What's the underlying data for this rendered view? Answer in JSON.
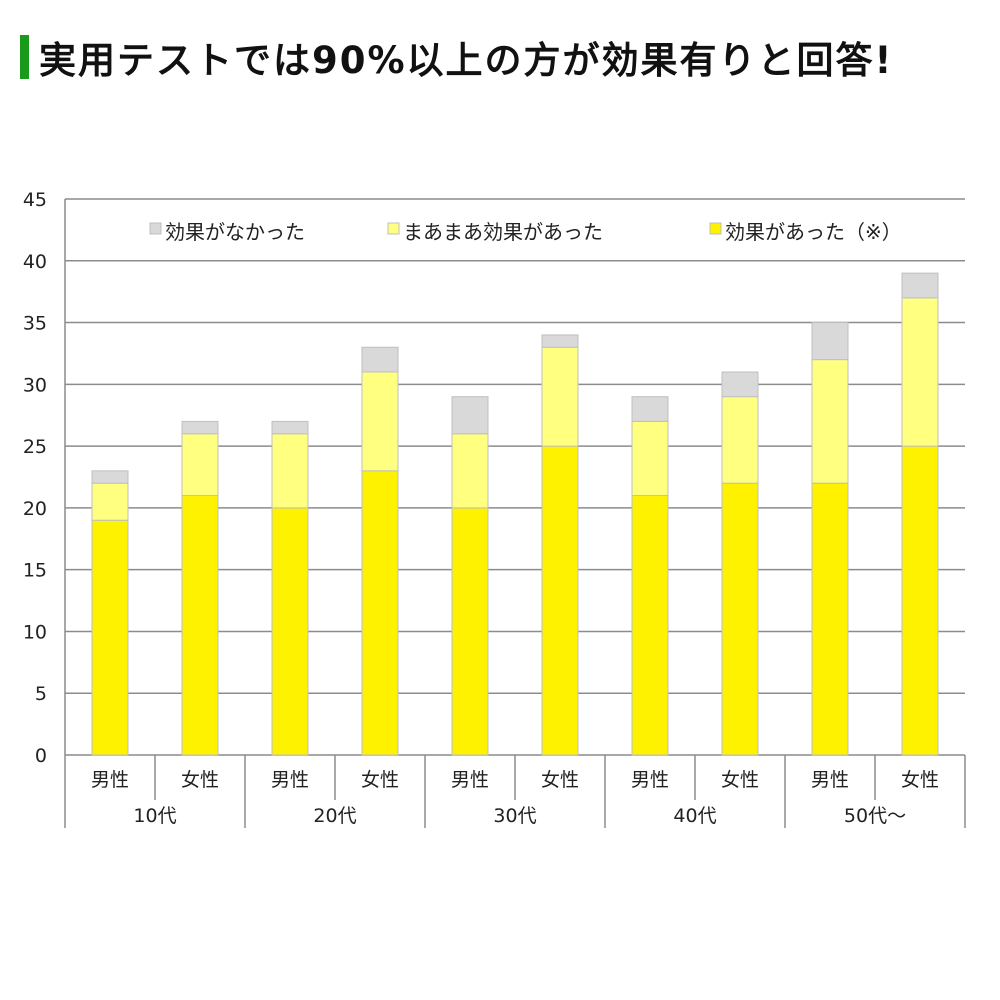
{
  "heading": "実用テストでは90%以上の方が効果有りと回答!",
  "chart_data": {
    "type": "bar",
    "stacked": true,
    "title": "実用テストでは90%以上の方が効果有りと回答!",
    "categories": [
      "男性",
      "女性",
      "男性",
      "女性",
      "男性",
      "女性",
      "男性",
      "女性",
      "男性",
      "女性"
    ],
    "groups": [
      "10代",
      "20代",
      "30代",
      "40代",
      "50代～"
    ],
    "series": [
      {
        "name": "効果があった（※）",
        "color": "#fff200",
        "values": [
          19,
          21,
          20,
          23,
          20,
          25,
          21,
          22,
          22,
          25
        ]
      },
      {
        "name": "まあまあ効果があった",
        "color": "#ffff80",
        "values": [
          3,
          5,
          6,
          8,
          6,
          8,
          6,
          7,
          10,
          12
        ]
      },
      {
        "name": "効果がなかった",
        "color": "#d9d9d9",
        "values": [
          1,
          1,
          1,
          2,
          3,
          1,
          2,
          2,
          3,
          2
        ]
      }
    ],
    "legend_order": [
      "効果がなかった",
      "まあまあ効果があった",
      "効果があった（※）"
    ],
    "yticks": [
      0,
      5,
      10,
      15,
      20,
      25,
      30,
      35,
      40,
      45
    ],
    "ylim": [
      0,
      45
    ],
    "grid": true,
    "legend": "top"
  }
}
